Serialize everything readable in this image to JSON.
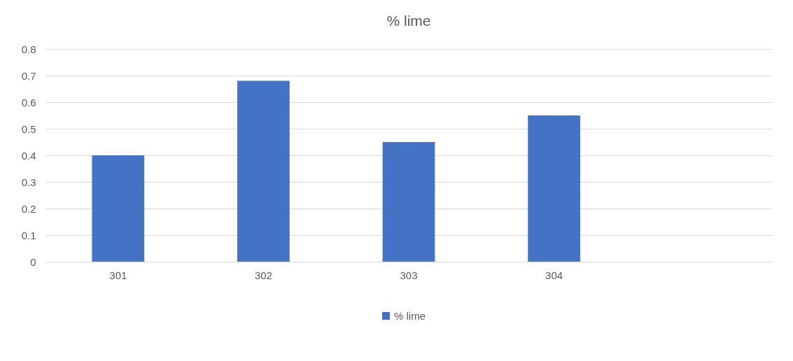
{
  "chart_data": {
    "type": "bar",
    "title": "% lime",
    "categories": [
      "301",
      "302",
      "303",
      "304",
      null
    ],
    "series": [
      {
        "name": "% lime",
        "color": "#4472c4",
        "values": [
          0.4,
          0.68,
          0.45,
          0.55,
          null
        ]
      }
    ],
    "ylim": [
      0,
      0.8
    ],
    "yticks": [
      0,
      0.1,
      0.2,
      0.3,
      0.4,
      0.5,
      0.6,
      0.7,
      0.8
    ],
    "grid": "y",
    "legend": "bottom"
  }
}
